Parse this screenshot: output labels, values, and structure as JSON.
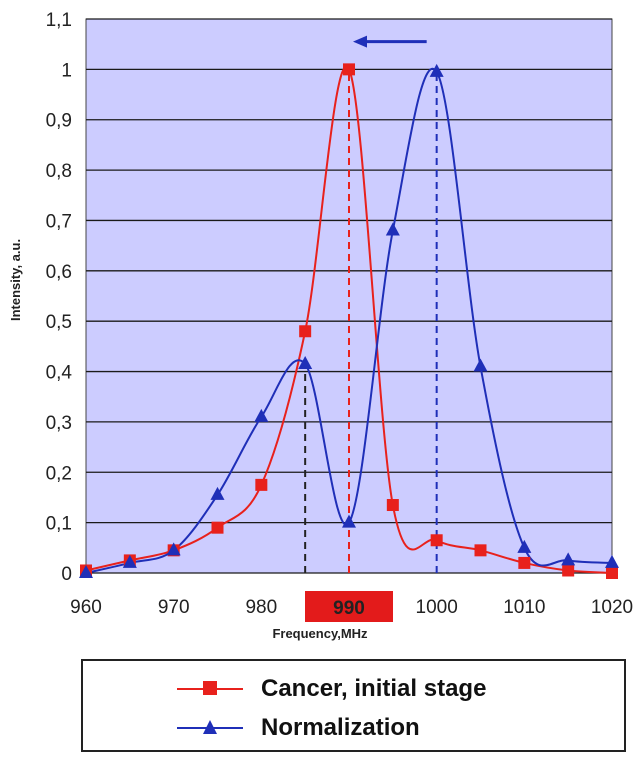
{
  "chart_data": {
    "type": "line",
    "title": "",
    "xlabel": "Frequency,MHz",
    "ylabel": "Intensity, a.u.",
    "xlim": [
      960,
      1020
    ],
    "ylim": [
      0,
      1.1
    ],
    "x_ticks": [
      "960",
      "970",
      "980",
      "990",
      "1000",
      "1010",
      "1020"
    ],
    "y_ticks": [
      "0",
      "0,1",
      "0,2",
      "0,3",
      "0,4",
      "0,5",
      "0,6",
      "0,7",
      "0,8",
      "0,9",
      "1",
      "1,1"
    ],
    "highlighted_x_tick": "990",
    "grid": true,
    "background_color": "#ccccff",
    "legend_position": "below",
    "series": [
      {
        "name": "Cancer, initial stage",
        "color": "#e8211c",
        "marker": "square",
        "x": [
          960,
          965,
          970,
          975,
          980,
          985,
          990,
          995,
          1000,
          1005,
          1010,
          1015,
          1020
        ],
        "y": [
          0.005,
          0.025,
          0.045,
          0.09,
          0.175,
          0.48,
          1.0,
          0.135,
          0.065,
          0.045,
          0.02,
          0.005,
          0.0
        ]
      },
      {
        "name": "Normalization",
        "color": "#1f2fb8",
        "marker": "triangle",
        "x": [
          960,
          965,
          970,
          975,
          980,
          985,
          990,
          995,
          1000,
          1005,
          1010,
          1015,
          1020
        ],
        "y": [
          0.0,
          0.02,
          0.045,
          0.155,
          0.31,
          0.415,
          0.1,
          0.68,
          0.995,
          0.41,
          0.05,
          0.025,
          0.02
        ]
      }
    ],
    "reference_lines": [
      {
        "x": 985,
        "y": 0.415,
        "color": "#222222",
        "style": "dashed"
      },
      {
        "x": 990,
        "y": 1.0,
        "color": "#e8211c",
        "style": "dashed"
      },
      {
        "x": 1000,
        "y": 0.995,
        "color": "#1f2fb8",
        "style": "dashed"
      }
    ],
    "annotations": [
      {
        "type": "arrow",
        "from_x": 1000,
        "to_x": 990,
        "y": 1.055,
        "color": "#1f2fb8"
      }
    ]
  }
}
